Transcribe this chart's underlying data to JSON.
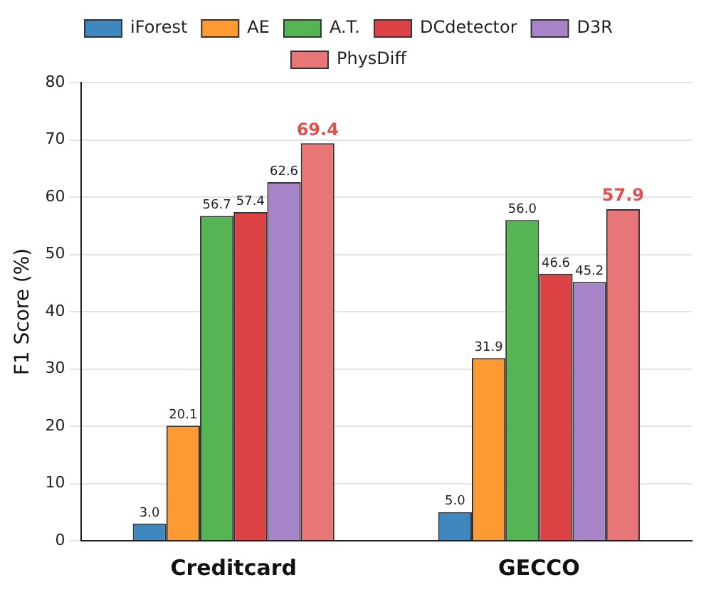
{
  "chart_data": {
    "type": "bar",
    "ylabel": "F1 Score (%)",
    "categories": [
      "Creditcard",
      "GECCO"
    ],
    "series": [
      {
        "name": "iForest",
        "color": "#3f87bf",
        "values": [
          3.0,
          5.0
        ],
        "value_labels": [
          "3.0",
          "5.0"
        ]
      },
      {
        "name": "AE",
        "color": "#ff9933",
        "values": [
          20.1,
          31.9
        ],
        "value_labels": [
          "20.1",
          "31.9"
        ]
      },
      {
        "name": "A.T.",
        "color": "#55b454",
        "values": [
          56.7,
          56.0
        ],
        "value_labels": [
          "56.7",
          "56.0"
        ]
      },
      {
        "name": "DCdetector",
        "color": "#dd4245",
        "values": [
          57.4,
          46.6
        ],
        "value_labels": [
          "57.4",
          "46.6"
        ]
      },
      {
        "name": "D3R",
        "color": "#a783c8",
        "values": [
          62.6,
          45.2
        ],
        "value_labels": [
          "62.6",
          "45.2"
        ]
      },
      {
        "name": "PhysDiff",
        "color": "#e97676",
        "values": [
          69.4,
          57.9
        ],
        "value_labels": [
          "69.4",
          "57.9"
        ]
      }
    ],
    "ylim": [
      0,
      80
    ],
    "yticks": [
      0,
      10,
      20,
      30,
      40,
      50,
      60,
      70,
      80
    ],
    "grid": "y",
    "legend": "top"
  }
}
